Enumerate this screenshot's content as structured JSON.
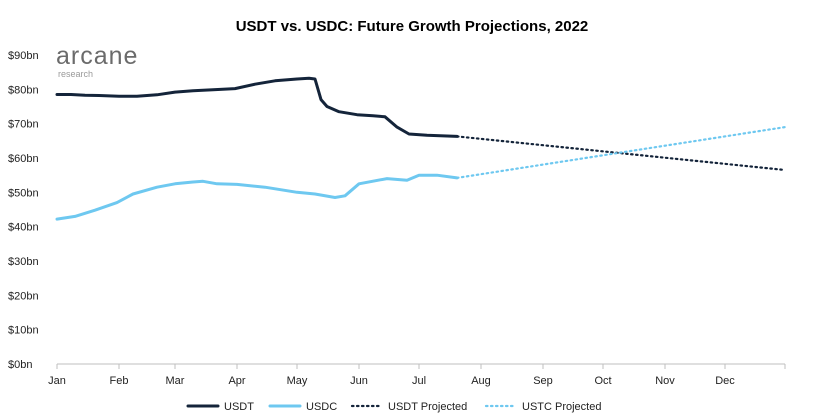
{
  "chart_data": {
    "type": "line",
    "title": "USDT vs. USDC: Future Growth Projections, 2022",
    "xlabel": "",
    "ylabel": "",
    "x_ticks": [
      "Jan",
      "Feb",
      "Mar",
      "Apr",
      "May",
      "Jun",
      "Jul",
      "Aug",
      "Sep",
      "Oct",
      "Nov",
      "Dec"
    ],
    "y_ticks": [
      "$0bn",
      "$10bn",
      "$20bn",
      "$30bn",
      "$40bn",
      "$50bn",
      "$60bn",
      "$70bn",
      "$80bn",
      "$90bn"
    ],
    "xlim": [
      "2022-01-01",
      "2022-12-31"
    ],
    "ylim": [
      0,
      90
    ],
    "grid": false,
    "legend_position": "bottom",
    "series": [
      {
        "name": "USDT",
        "color": "#14243a",
        "style": "solid",
        "points": [
          [
            "2022-01-01",
            78.5
          ],
          [
            "2022-01-08",
            78.5
          ],
          [
            "2022-01-15",
            78.3
          ],
          [
            "2022-01-22",
            78.2
          ],
          [
            "2022-02-01",
            78.0
          ],
          [
            "2022-02-10",
            78.0
          ],
          [
            "2022-02-20",
            78.4
          ],
          [
            "2022-03-01",
            79.2
          ],
          [
            "2022-03-10",
            79.6
          ],
          [
            "2022-03-20",
            79.9
          ],
          [
            "2022-03-31",
            80.2
          ],
          [
            "2022-04-10",
            81.5
          ],
          [
            "2022-04-20",
            82.5
          ],
          [
            "2022-05-01",
            83.0
          ],
          [
            "2022-05-07",
            83.2
          ],
          [
            "2022-05-10",
            83.0
          ],
          [
            "2022-05-13",
            77.0
          ],
          [
            "2022-05-16",
            75.0
          ],
          [
            "2022-05-22",
            73.5
          ],
          [
            "2022-05-31",
            72.6
          ],
          [
            "2022-06-08",
            72.3
          ],
          [
            "2022-06-14",
            72.0
          ],
          [
            "2022-06-20",
            69.0
          ],
          [
            "2022-06-26",
            67.0
          ],
          [
            "2022-07-05",
            66.6
          ],
          [
            "2022-07-20",
            66.3
          ]
        ]
      },
      {
        "name": "USDC",
        "color": "#6ec8f0",
        "style": "solid",
        "points": [
          [
            "2022-01-01",
            42.2
          ],
          [
            "2022-01-10",
            43.0
          ],
          [
            "2022-01-20",
            44.8
          ],
          [
            "2022-01-31",
            47.0
          ],
          [
            "2022-02-08",
            49.5
          ],
          [
            "2022-02-20",
            51.5
          ],
          [
            "2022-03-01",
            52.5
          ],
          [
            "2022-03-10",
            53.0
          ],
          [
            "2022-03-15",
            53.2
          ],
          [
            "2022-03-22",
            52.5
          ],
          [
            "2022-04-01",
            52.3
          ],
          [
            "2022-04-15",
            51.5
          ],
          [
            "2022-05-01",
            50.0
          ],
          [
            "2022-05-10",
            49.5
          ],
          [
            "2022-05-20",
            48.5
          ],
          [
            "2022-05-25",
            49.0
          ],
          [
            "2022-06-01",
            52.5
          ],
          [
            "2022-06-15",
            54.0
          ],
          [
            "2022-06-25",
            53.5
          ],
          [
            "2022-07-01",
            55.0
          ],
          [
            "2022-07-10",
            55.0
          ],
          [
            "2022-07-20",
            54.2
          ]
        ]
      },
      {
        "name": "USDT Projected",
        "color": "#14243a",
        "style": "dotted",
        "points": [
          [
            "2022-07-20",
            66.3
          ],
          [
            "2022-12-31",
            56.5
          ]
        ]
      },
      {
        "name": "USTC Projected",
        "color": "#6ec8f0",
        "style": "dotted",
        "points": [
          [
            "2022-07-20",
            54.2
          ],
          [
            "2022-12-31",
            69.0
          ]
        ]
      }
    ]
  },
  "logo": {
    "main": "arcane",
    "sub": "research"
  }
}
